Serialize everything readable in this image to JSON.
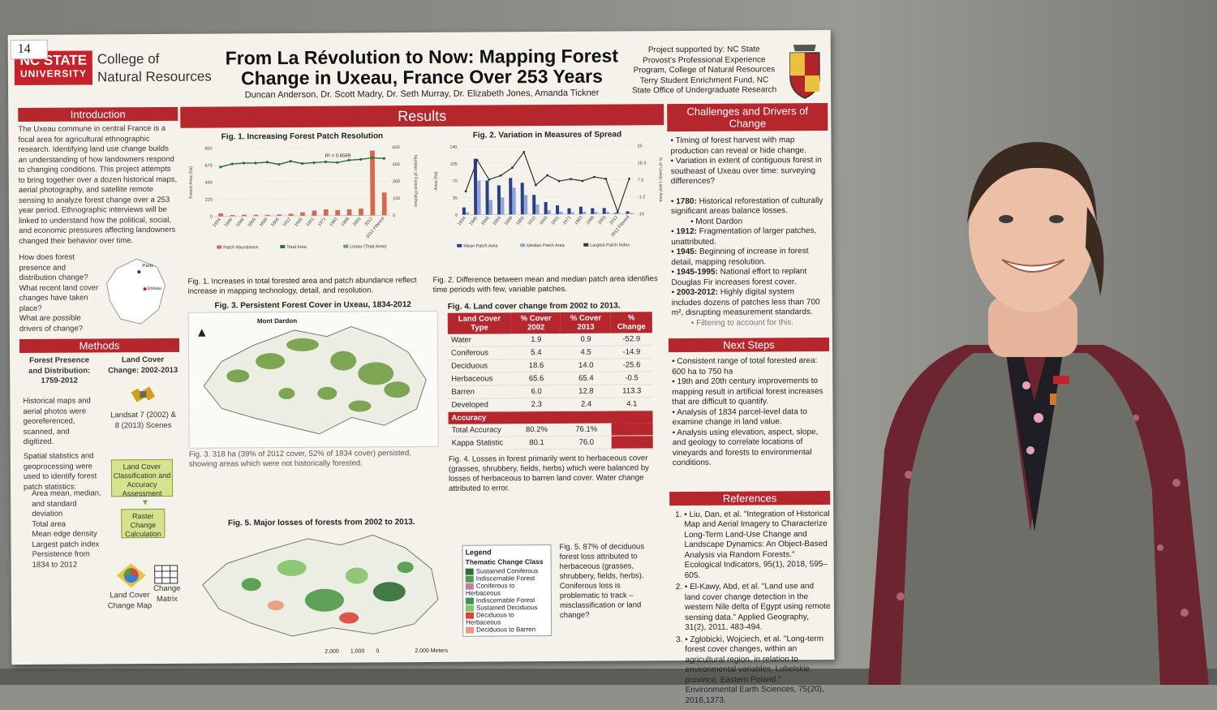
{
  "poster": {
    "sticker": "14",
    "logo": {
      "line1": "NC STATE",
      "line2": "UNIVERSITY"
    },
    "college": {
      "line1": "College of",
      "line2": "Natural Resources"
    },
    "title": {
      "line1": "From La Révolution to Now: Mapping Forest",
      "line2": "Change in Uxeau, France Over 253 Years"
    },
    "authors": "Duncan Anderson, Dr. Scott Madry, Dr. Seth Murray, Dr. Elizabeth Jones, Amanda Tickner",
    "support": "Project supported by: NC State Provost's Professional Experience Program, College of Natural Resources Terry Student Enrichment Fund, NC State Office of Undergraduate Research",
    "intro": {
      "heading": "Introduction",
      "text": "The Uxeau commune in central France is a focal area for agricultural ethnographic research. Identifying land use change builds an understanding of how landowners respond to changing conditions. This project attempts to bring together over a dozen historical maps, aerial photography, and satellite remote sensing to analyze forest change over a 253 year period. Ethnographic interviews will be linked to understand how the political, social, and economic pressures affecting landowners changed their behavior over time.",
      "questions": [
        "How does forest presence and distribution change?",
        "What recent land cover changes have taken place?",
        "What are possible drivers of change?"
      ],
      "map_labels": [
        "Paris",
        "Uxeau"
      ]
    },
    "methods": {
      "heading": "Methods",
      "left_title": "Forest Presence and Distribution: 1759-2012",
      "right_title": "Land Cover Change: 2002-2013",
      "left_text": "Historical maps and aerial photos were georeferenced, scanned, and digitized.",
      "satellite_label": "Landsat 7 (2002) & 8 (2013) Scenes",
      "stats_text": "Spatial statistics and geoprocessing were used to identify forest patch statistics:",
      "stats_items": [
        "Area mean, median, and standard deviation",
        "Total area",
        "Mean edge density",
        "Largest patch index",
        "Persistence from 1834 to 2012"
      ],
      "flow1": "Land Cover Classification and Accuracy Assessment",
      "flow2": "Raster Change Calculation",
      "out1": "Land Cover Change Map",
      "out2": "Change Matrix"
    },
    "results": {
      "heading": "Results",
      "fig1": {
        "title": "Fig. 1. Increasing Forest Patch Resolution",
        "r2": "R² = 0.6569",
        "caption": "Fig. 1. Increases in total forested area and patch abundance reflect increase in mapping technology, detail, and resolution.",
        "legend": [
          "Patch Abundance",
          "Total Area",
          "Linear (Total Area)"
        ]
      },
      "fig2": {
        "title": "Fig. 2. Variation in Measures of Spread",
        "caption": "Fig. 2. Difference between mean and median patch area identifies time periods with few, variable patches.",
        "legend": [
          "Mean Patch Area",
          "Median Patch Area",
          "Largest Patch Index"
        ]
      },
      "fig3": {
        "title": "Fig. 3. Persistent Forest Cover in Uxeau, 1834-2012",
        "place": "Mont Dardon",
        "caption": "Fig. 3. 318 ha (39% of 2012 cover, 52% of 1834 cover) persisted, showing areas which were not historically forested."
      },
      "fig4": {
        "title": "Fig. 4. Land cover change from 2002 to 2013.",
        "headers": [
          "Land Cover Type",
          "% Cover 2002",
          "% Cover 2013",
          "% Change"
        ],
        "rows": [
          [
            "Water",
            "1.9",
            "0.9",
            "-52.9"
          ],
          [
            "Coniferous",
            "5.4",
            "4.5",
            "-14.9"
          ],
          [
            "Deciduous",
            "18.6",
            "14.0",
            "-25.6"
          ],
          [
            "Herbaceous",
            "65.6",
            "65.4",
            "-0.5"
          ],
          [
            "Barren",
            "6.0",
            "12.8",
            "113.3"
          ],
          [
            "Developed",
            "2.3",
            "2.4",
            "4.1"
          ]
        ],
        "accuracy_label": "Accuracy",
        "accuracy_rows": [
          [
            "Total Accuracy",
            "80.2%",
            "76.1%"
          ],
          [
            "Kappa Statistic",
            "80.1",
            "76.0"
          ]
        ],
        "caption": "Fig. 4. Losses in forest primarily went to herbaceous cover (grasses, shrubbery, fields, herbs) which were balanced by losses of herbaceous to barren land cover. Water change attributed to error."
      },
      "fig5": {
        "title": "Fig. 5. Major losses of forests from 2002 to 2013.",
        "scale": [
          "2,000",
          "1,000",
          "0",
          "2,000 Meters"
        ],
        "caption": "Fig. 5. 87% of deciduous forest loss attributed to herbaceous (grasses, shrubbery, fields, herbs). Coniferous loss is problematic to track – misclassification or land change?",
        "legend_title": "Legend",
        "legend_sub": "Thematic Change Class",
        "legend_items": [
          {
            "label": "Sustained Coniferous",
            "color": "#2f6e35"
          },
          {
            "label": "Indiscernable Forest",
            "color": "#4f9a48"
          },
          {
            "label": "Coniferous to Herbaceous",
            "color": "#c879a6"
          },
          {
            "label": "Indiscernable Forest",
            "color": "#3f8f5f"
          },
          {
            "label": "Sustained Deciduous",
            "color": "#86c46a"
          },
          {
            "label": "Deciduous to Herbaceous",
            "color": "#d9473c"
          },
          {
            "label": "Deciduous to Barren",
            "color": "#e99a7a"
          }
        ]
      }
    },
    "challenges": {
      "heading": "Challenges and Drivers of Change",
      "items": [
        "Timing of forest harvest with map production can reveal or hide change.",
        "Variation in extent of contiguous forest in southeast of Uxeau over time: surveying differences?"
      ],
      "drivers": [
        {
          "year": "1780:",
          "text": "Historical reforestation of culturally significant areas balance losses."
        },
        {
          "year": "1912:",
          "text": "Fragmentation of larger patches, unattributed."
        },
        {
          "year": "1945:",
          "text": "Beginning of increase in forest detail, mapping resolution."
        },
        {
          "year": "1945-1995:",
          "text": "National effort to replant Douglas Fir increases forest cover."
        },
        {
          "year": "2003-2012:",
          "text": "Highly digital system includes dozens of patches less than 700 m², disrupting measurement standards."
        }
      ],
      "sub": "Mont Dardon",
      "tail": "Filtering to account for this."
    },
    "next": {
      "heading": "Next Steps",
      "items": [
        "Consistent range of total forested area: 600 ha to 750 ha",
        "19th and 20th century improvements to mapping result in artificial forest increases that are difficult to quantify.",
        "Analysis of 1834 parcel-level data to examine change in land value.",
        "Analysis using elevation, aspect, slope, and geology to correlate locations of vineyards and forests to environmental conditions."
      ]
    },
    "references": {
      "heading": "References",
      "items": [
        "Liu, Dan, et al. \"Integration of Historical Map and Aerial Imagery to Characterize Long-Term Land-Use Change and Landscape Dynamics: An Object-Based Analysis via Random Forests.\" Ecological Indicators, 95(1), 2018, 595–605.",
        "El-Kawy, Abd, et al. \"Land use and land cover change detection in the western Nile delta of Egypt using remote sensing data.\" Applied Geography, 31(2), 2011, 483-494.",
        "Zglobicki, Wojciech, et al. \"Long-term forest cover changes, within an agricultural region, in relation to environmental variables, Lubelskie province, Eastern Poland.\" Environmental Earth Sciences, 75(20), 2016,1373."
      ]
    }
  },
  "chart_data": [
    {
      "type": "bar",
      "title": "Fig. 1. Increasing Forest Patch Resolution",
      "categories": [
        "1834",
        "1840",
        "1848",
        "1869",
        "1889",
        "1895",
        "1912",
        "1945",
        "1951",
        "1971",
        "1983",
        "1998",
        "2003",
        "2012",
        "2012 Filtered"
      ],
      "ylabel": "Forest Area (ha)",
      "y2label": "Number of Forest Patches",
      "ylim": [
        0,
        900
      ],
      "y2lim": [
        0,
        600
      ],
      "series": [
        {
          "name": "Patch Abundance",
          "axis": "right",
          "values": [
            25,
            10,
            12,
            12,
            10,
            12,
            18,
            30,
            45,
            55,
            48,
            55,
            60,
            570,
            200
          ]
        },
        {
          "name": "Total Area",
          "axis": "left",
          "values": [
            650,
            690,
            700,
            700,
            710,
            680,
            720,
            690,
            700,
            710,
            700,
            730,
            740,
            760,
            750
          ]
        }
      ]
    },
    {
      "type": "bar",
      "title": "Fig. 2. Variation in Measures of Spread",
      "categories": [
        "1834",
        "1840",
        "1848",
        "1869",
        "1889",
        "1895",
        "1912",
        "1945",
        "1951",
        "1971",
        "1983",
        "1998",
        "2003",
        "2012",
        "2012 Filtered"
      ],
      "ylabel": "Area (ha)",
      "y2label": "% of Uxeau Land Area",
      "ylim": [
        0,
        140
      ],
      "y2lim": [
        -10,
        25
      ],
      "series": [
        {
          "name": "Mean Patch Area",
          "values": [
            15,
            115,
            70,
            60,
            75,
            65,
            40,
            25,
            18,
            12,
            15,
            12,
            12,
            2,
            5
          ]
        },
        {
          "name": "Median Patch Area",
          "values": [
            5,
            70,
            30,
            35,
            55,
            40,
            20,
            8,
            5,
            4,
            5,
            4,
            4,
            1,
            2
          ]
        },
        {
          "name": "Largest Patch Index",
          "values": [
            2,
            18,
            8,
            10,
            14,
            22,
            5,
            10,
            7,
            8,
            7,
            9,
            8,
            -9,
            8
          ]
        }
      ]
    }
  ]
}
